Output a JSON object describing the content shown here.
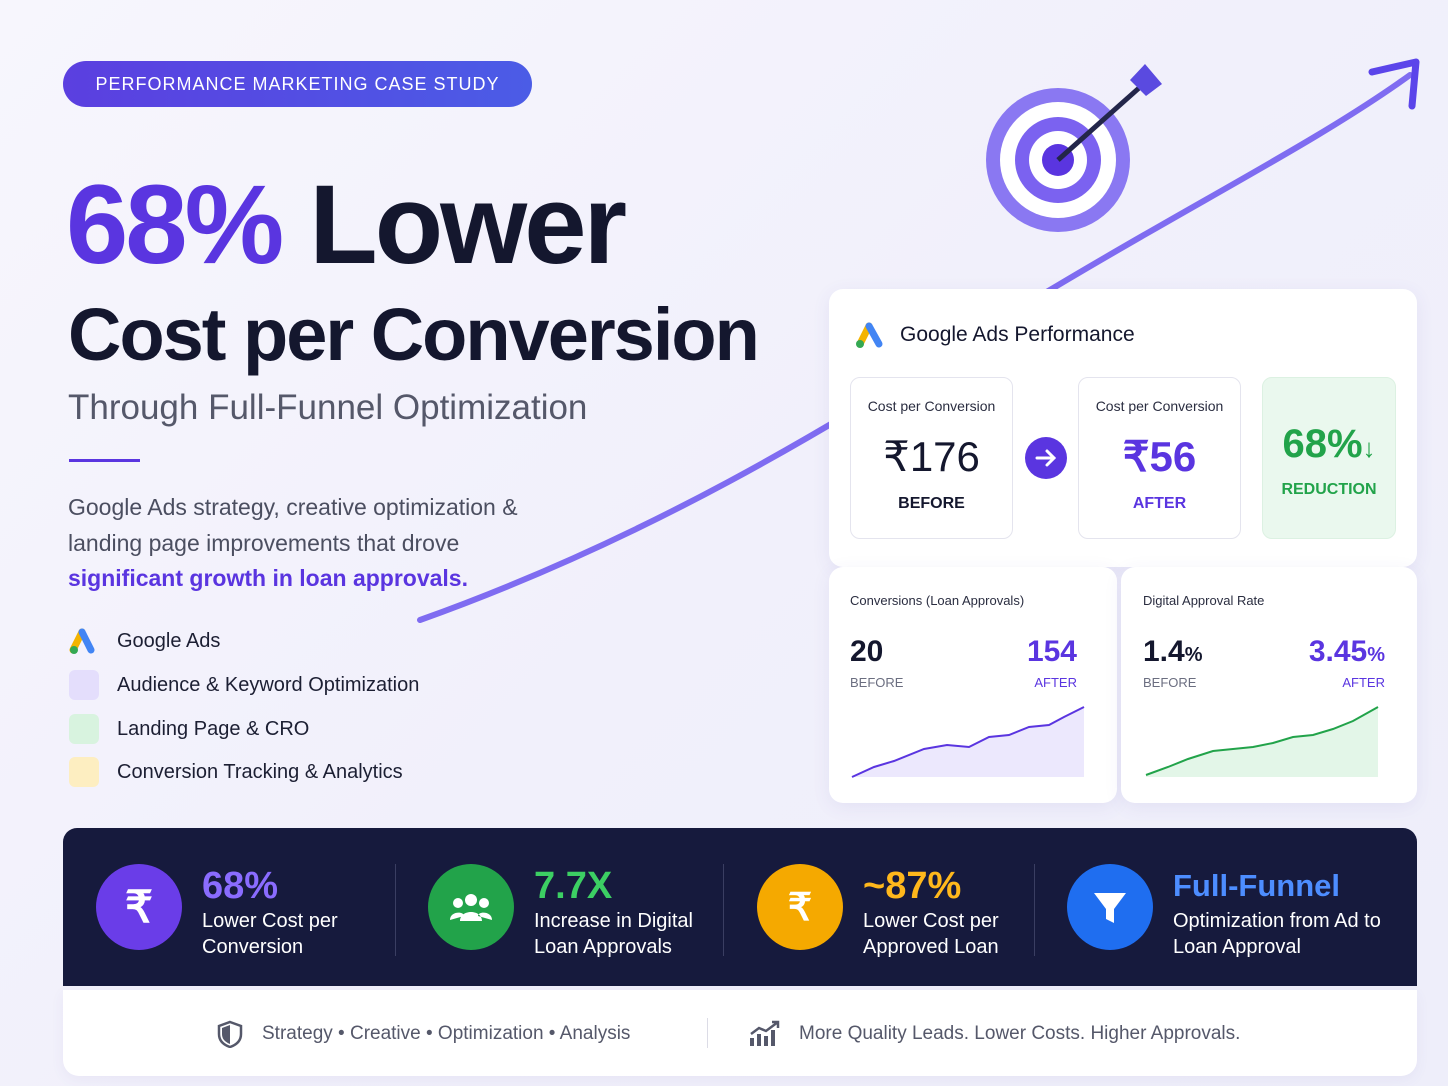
{
  "badge": "PERFORMANCE MARKETING CASE STUDY",
  "headline": {
    "highlight": "68%",
    "rest": "Lower",
    "line2": "Cost per Conversion",
    "subtitle": "Through Full-Funnel Optimization"
  },
  "description": {
    "text": "Google Ads strategy, creative optimization & landing page improvements that drove",
    "highlight": "significant growth in loan approvals."
  },
  "services": [
    "Google Ads",
    "Audience & Keyword Optimization",
    "Landing Page & CRO",
    "Conversion Tracking & Analytics"
  ],
  "panel": {
    "title": "Google Ads Performance",
    "before": {
      "label": "Cost per Conversion",
      "value": "₹176",
      "tag": "BEFORE"
    },
    "after": {
      "label": "Cost per Conversion",
      "value": "₹56",
      "tag": "AFTER"
    },
    "reduction": {
      "value": "68%",
      "tag": "REDUCTION"
    }
  },
  "metrics": [
    {
      "title": "Conversions (Loan Approvals)",
      "before": {
        "value": "20",
        "tag": "BEFORE"
      },
      "after": {
        "value": "154",
        "tag": "AFTER"
      }
    },
    {
      "title": "Digital Approval Rate",
      "before": {
        "value": "1.4",
        "unit": "%",
        "tag": "BEFORE"
      },
      "after": {
        "value": "3.45",
        "unit": "%",
        "tag": "AFTER"
      }
    }
  ],
  "stats": [
    {
      "value": "68%",
      "label": "Lower Cost per Conversion"
    },
    {
      "value": "7.7X",
      "label": "Increase in Digital Loan Approvals"
    },
    {
      "value": "~87%",
      "label": "Lower Cost per Approved Loan"
    },
    {
      "value": "Full-Funnel",
      "label": "Optimization from Ad to Loan Approval"
    }
  ],
  "footer": {
    "left": "Strategy • Creative • Optimization • Analysis",
    "right": "More Quality Leads. Lower Costs. Higher Approvals."
  }
}
